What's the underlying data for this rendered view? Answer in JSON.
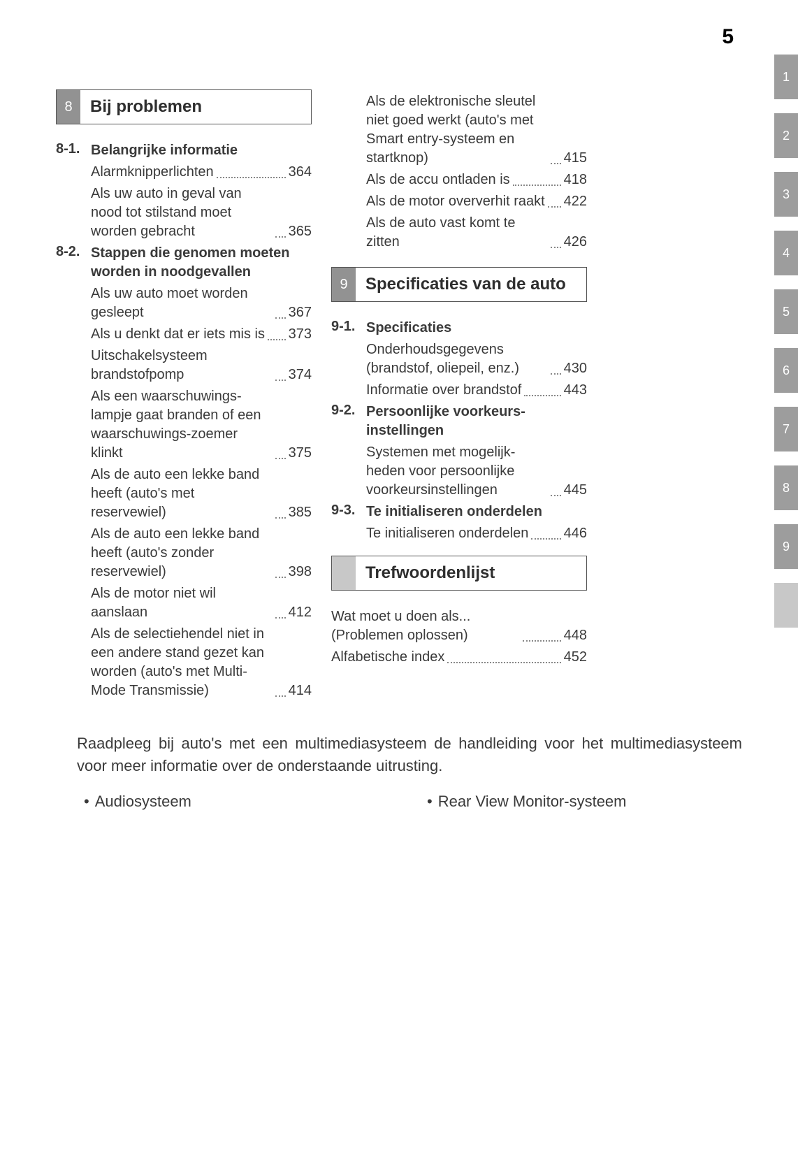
{
  "page_number": "5",
  "side_tabs": [
    "1",
    "2",
    "3",
    "4",
    "5",
    "6",
    "7",
    "8",
    "9",
    ""
  ],
  "section8": {
    "num": "8",
    "title": "Bij problemen",
    "subs": [
      {
        "num": "8-1.",
        "title": "Belangrijke informatie",
        "entries": [
          {
            "text": "Alarmknipperlichten",
            "page": "364"
          },
          {
            "text": "Als uw auto in geval van nood tot stilstand moet worden gebracht",
            "page": "365"
          }
        ]
      },
      {
        "num": "8-2.",
        "title": "Stappen die genomen moeten worden in noodgevallen",
        "entries": [
          {
            "text": "Als uw auto moet worden gesleept",
            "page": "367"
          },
          {
            "text": "Als u denkt dat er iets mis is",
            "page": "373"
          },
          {
            "text": "Uitschakelsysteem brandstofpomp",
            "page": "374"
          },
          {
            "text": "Als een waarschuwings-lampje gaat branden of een waarschuwings-zoemer klinkt",
            "page": "375"
          },
          {
            "text": "Als de auto een lekke band heeft (auto's met reservewiel)",
            "page": "385"
          },
          {
            "text": "Als de auto een lekke band heeft (auto's zonder reservewiel)",
            "page": "398"
          },
          {
            "text": "Als de motor niet wil aanslaan",
            "page": "412"
          },
          {
            "text": "Als de selectiehendel niet in een andere stand gezet kan worden (auto's met Multi-Mode Transmissie)",
            "page": "414"
          }
        ]
      }
    ]
  },
  "col2_top_entries": [
    {
      "text": "Als de elektronische sleutel niet goed werkt (auto's met Smart entry-systeem en startknop)",
      "page": "415"
    },
    {
      "text": "Als de accu ontladen is",
      "page": "418"
    },
    {
      "text": "Als de motor oververhit raakt",
      "page": "422"
    },
    {
      "text": "Als de auto vast komt te zitten",
      "page": "426"
    }
  ],
  "section9": {
    "num": "9",
    "title": "Specificaties van de auto",
    "subs": [
      {
        "num": "9-1.",
        "title": "Specificaties",
        "entries": [
          {
            "text": "Onderhoudsgegevens (brandstof, oliepeil, enz.)",
            "page": "430"
          },
          {
            "text": "Informatie over brandstof",
            "page": "443"
          }
        ]
      },
      {
        "num": "9-2.",
        "title": "Persoonlijke voorkeurs-instellingen",
        "entries": [
          {
            "text": "Systemen met mogelijk-heden voor persoonlijke voorkeursinstellingen",
            "page": "445"
          }
        ]
      },
      {
        "num": "9-3.",
        "title": "Te initialiseren onderdelen",
        "entries": [
          {
            "text": "Te initialiseren onderdelen",
            "page": "446"
          }
        ]
      }
    ]
  },
  "section_index": {
    "title": "Trefwoordenlijst",
    "entries": [
      {
        "text": "Wat moet u doen als... (Problemen oplossen)",
        "page": "448"
      },
      {
        "text": "Alfabetische index",
        "page": "452"
      }
    ]
  },
  "footer": {
    "note": "Raadpleeg bij auto's met een multimediasysteem de handleiding voor het multimediasysteem voor meer informatie over de onderstaande uitrusting.",
    "items": [
      "Audiosysteem",
      "Rear View Monitor-systeem"
    ]
  },
  "colors": {
    "tab_bg": "#9d9d9d",
    "secnum_bg": "#929292",
    "blank_bg": "#c8c8c8",
    "text": "#3a3a3a"
  }
}
